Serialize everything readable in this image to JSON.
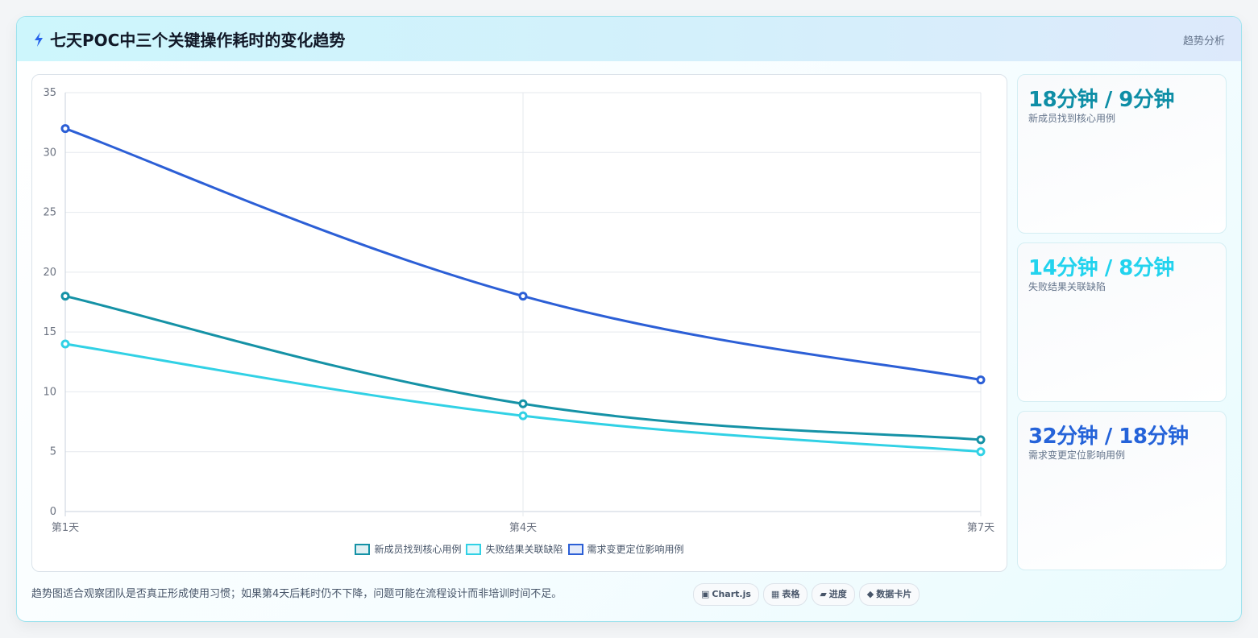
{
  "header": {
    "icon": "lightning-icon",
    "title": "七天POC中三个关键操作耗时的变化趋势",
    "tag": "趋势分析",
    "accent": "#2563eb"
  },
  "chart_data": {
    "type": "line",
    "title": "",
    "xlabel": "",
    "ylabel": "",
    "x": [
      "第1天",
      "第4天",
      "第7天"
    ],
    "ylim": [
      0,
      35
    ],
    "yticks": [
      0,
      5,
      10,
      15,
      20,
      25,
      30,
      35
    ],
    "grid": true,
    "legend_position": "bottom",
    "series": [
      {
        "name": "新成员找到核心用例",
        "values": [
          18,
          9,
          6
        ],
        "color": "#1592a6"
      },
      {
        "name": "失败结果关联缺陷",
        "values": [
          14,
          8,
          5
        ],
        "color": "#31d1e5"
      },
      {
        "name": "需求变更定位影响用例",
        "values": [
          32,
          18,
          11
        ],
        "color": "#2c5fd6"
      }
    ]
  },
  "stats": [
    {
      "value": "18分钟 / 9分钟",
      "label": "新成员找到核心用例",
      "color": "#0e8ea6"
    },
    {
      "value": "14分钟 / 8分钟",
      "label": "失败结果关联缺陷",
      "color": "#22d3ee"
    },
    {
      "value": "32分钟 / 18分钟",
      "label": "需求变更定位影响用例",
      "color": "#2563d9"
    }
  ],
  "footnote": "趋势图适合观察团队是否真正形成使用习惯；如果第4天后耗时仍不下降，问题可能在流程设计而非培训时间不足。",
  "pills": [
    {
      "icon": "▣",
      "icon_name": "chart-icon",
      "label": "Chart.js"
    },
    {
      "icon": "▦",
      "icon_name": "table-icon",
      "label": "表格"
    },
    {
      "icon": "▰",
      "icon_name": "progress-icon",
      "label": "进度"
    },
    {
      "icon": "◆",
      "icon_name": "diamond-icon",
      "label": "数据卡片"
    }
  ]
}
